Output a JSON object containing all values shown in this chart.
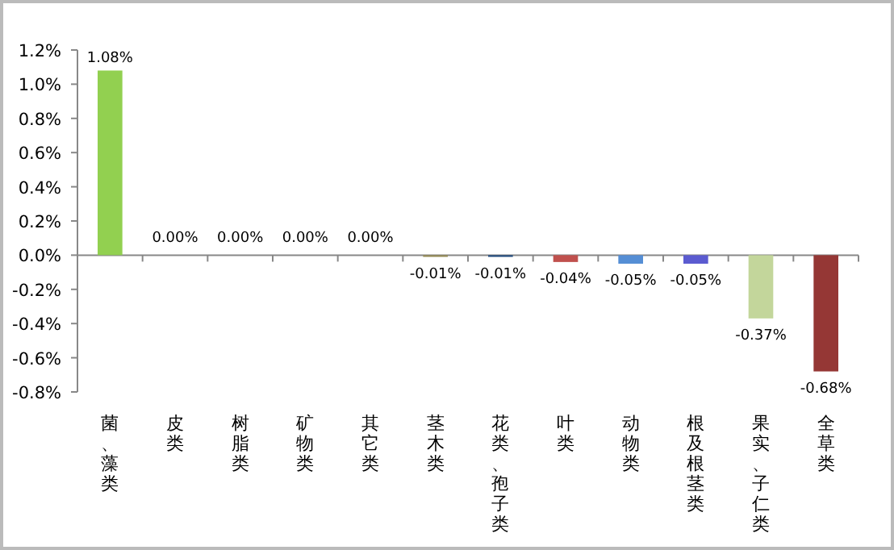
{
  "chart_data": {
    "type": "bar",
    "categories": [
      "菌、藻类",
      "皮类",
      "树脂类",
      "矿物类",
      "其它类",
      "茎木类",
      "花类、孢子类",
      "叶类",
      "动物类",
      "根及根茎类",
      "果实、子仁类",
      "全草类"
    ],
    "values": [
      1.08,
      0,
      0,
      0,
      0,
      -0.01,
      -0.01,
      -0.04,
      -0.05,
      -0.05,
      -0.37,
      -0.68
    ],
    "colors": [
      "#92d050",
      null,
      null,
      null,
      null,
      "#948a54",
      "#1f497d",
      "#c0504d",
      "#558ed5",
      "#5b5bd0",
      "#c3d69b",
      "#953735"
    ],
    "value_labels": [
      "1.08%",
      "0.00%",
      "0.00%",
      "0.00%",
      "0.00%",
      "-0.01%",
      "-0.01%",
      "-0.04%",
      "-0.05%",
      "-0.05%",
      "-0.37%",
      "-0.68%"
    ],
    "ylim": [
      -0.8,
      1.2
    ],
    "yticks": [
      {
        "value": -0.8,
        "label": "-0.8%"
      },
      {
        "value": -0.6,
        "label": "-0.6%"
      },
      {
        "value": -0.4,
        "label": "-0.4%"
      },
      {
        "value": -0.2,
        "label": "-0.2%"
      },
      {
        "value": 0,
        "label": "0.0%"
      },
      {
        "value": 0.2,
        "label": "0.2%"
      },
      {
        "value": 0.4,
        "label": "0.4%"
      },
      {
        "value": 0.6,
        "label": "0.6%"
      },
      {
        "value": 0.8,
        "label": "0.8%"
      },
      {
        "value": 1.0,
        "label": "1.0%"
      },
      {
        "value": 1.2,
        "label": "1.2%"
      }
    ]
  }
}
